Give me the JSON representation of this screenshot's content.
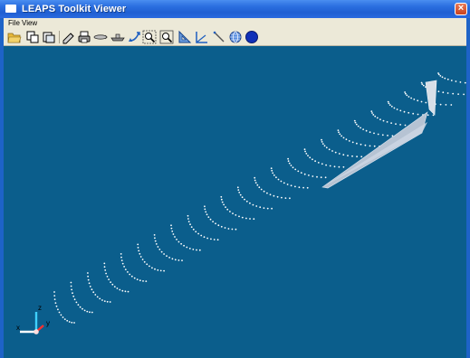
{
  "window": {
    "title": "LEAPS Toolkit Viewer"
  },
  "menu": {
    "items": [
      {
        "label": "File"
      },
      {
        "label": "View"
      }
    ]
  },
  "toolbar": {
    "tools": [
      {
        "icon": "open-folder-icon"
      },
      {
        "icon": "copy-view-icon"
      },
      {
        "icon": "paste-view-icon"
      },
      {
        "icon": "pencil-icon"
      },
      {
        "icon": "print-icon"
      },
      {
        "icon": "torpedo-icon"
      },
      {
        "icon": "ship-icon"
      },
      {
        "icon": "rotate-icon"
      },
      {
        "icon": "zoom-in-icon"
      },
      {
        "icon": "zoom-out-icon"
      },
      {
        "icon": "triangle-ruler-icon"
      },
      {
        "icon": "angle-measure-icon"
      },
      {
        "icon": "line-tool-icon"
      },
      {
        "icon": "globe-icon"
      },
      {
        "icon": "blue-circle-icon"
      }
    ]
  },
  "viewport": {
    "background_color": "#0b5e8c",
    "station_color": "#ffffff",
    "surface_color": "#b9c6d6"
  }
}
